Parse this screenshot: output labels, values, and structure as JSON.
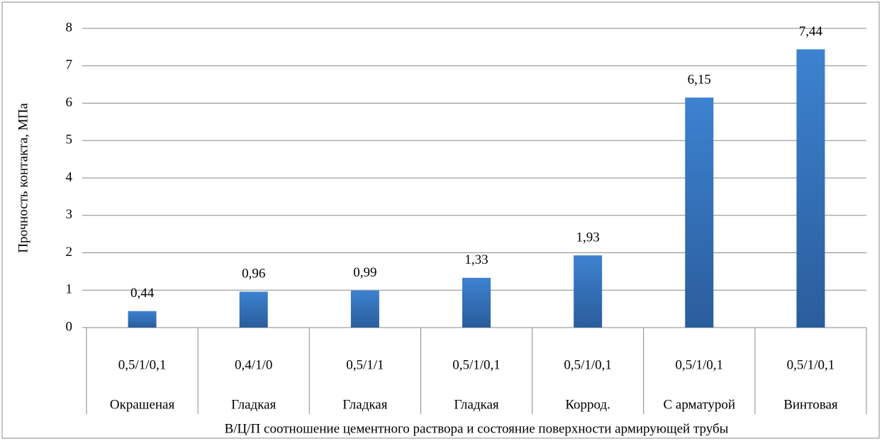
{
  "chart_data": {
    "type": "bar",
    "y_label": "Прочность контакта, МПа",
    "x_label": "В/Ц/П соотношение цементного раствора и состояние поверхности армирующей трубы",
    "categories": [
      [
        "0,5/1/0,1",
        "Окрашеная"
      ],
      [
        "0,4/1/0",
        "Гладкая"
      ],
      [
        "0,5/1/1",
        "Гладкая"
      ],
      [
        "0,5/1/0,1",
        "Гладкая"
      ],
      [
        "0,5/1/0,1",
        "Коррод."
      ],
      [
        "0,5/1/0,1",
        "С арматурой"
      ],
      [
        "0,5/1/0,1",
        "Винтовая"
      ]
    ],
    "values": [
      0.44,
      0.96,
      0.99,
      1.33,
      1.93,
      6.15,
      7.44
    ],
    "value_labels": [
      "0,44",
      "0,96",
      "0,99",
      "1,33",
      "1,93",
      "6,15",
      "7,44"
    ],
    "color": "#3a78c2",
    "ylim": [
      0,
      8
    ],
    "yticks": [
      0,
      1,
      2,
      3,
      4,
      5,
      6,
      7,
      8
    ],
    "grid": true
  }
}
